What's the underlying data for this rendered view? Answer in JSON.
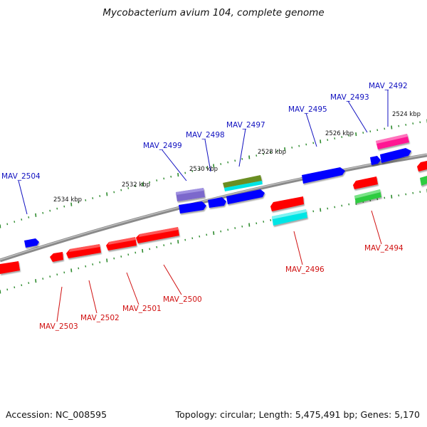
{
  "title": "Mycobacterium avium 104, complete genome",
  "footer": {
    "accession": "Accession: NC_008595",
    "summary": "Topology: circular; Length: 5,475,491 bp; Genes: 5,170"
  },
  "colors": {
    "backbone": "#808080",
    "tick": "#2e8b2e",
    "forward_label": "#1010c0",
    "reverse_label": "#d01010"
  },
  "scale_labels": [
    "2534 kbp",
    "2532 kbp",
    "2530 kbp",
    "2528 kbp",
    "2526 kbp",
    "2524 kbp"
  ],
  "genes": [
    {
      "name": "MAV_2504",
      "strand": "forward",
      "color": "#0000ff"
    },
    {
      "name": "MAV_2499",
      "strand": "forward",
      "color": "#7b68cc"
    },
    {
      "name": "MAV_2498",
      "strand": "forward",
      "color": "#0000ff"
    },
    {
      "name": "MAV_2497",
      "strand": "forward",
      "color": "#6b8e23"
    },
    {
      "name": "MAV_2495",
      "strand": "forward",
      "color": "#0000ff"
    },
    {
      "name": "MAV_2493",
      "strand": "forward",
      "color": "#0000ff"
    },
    {
      "name": "MAV_2492",
      "strand": "forward",
      "color": "#ff1493"
    },
    {
      "name": "MAV_2503",
      "strand": "reverse",
      "color": "#ff0000"
    },
    {
      "name": "MAV_2502",
      "strand": "reverse",
      "color": "#ff0000"
    },
    {
      "name": "MAV_2501",
      "strand": "reverse",
      "color": "#ff0000"
    },
    {
      "name": "MAV_2500",
      "strand": "reverse",
      "color": "#ff0000"
    },
    {
      "name": "MAV_2496",
      "strand": "reverse",
      "color": "#00e5e5"
    },
    {
      "name": "MAV_2494",
      "strand": "reverse",
      "color": "#ff0000"
    }
  ]
}
